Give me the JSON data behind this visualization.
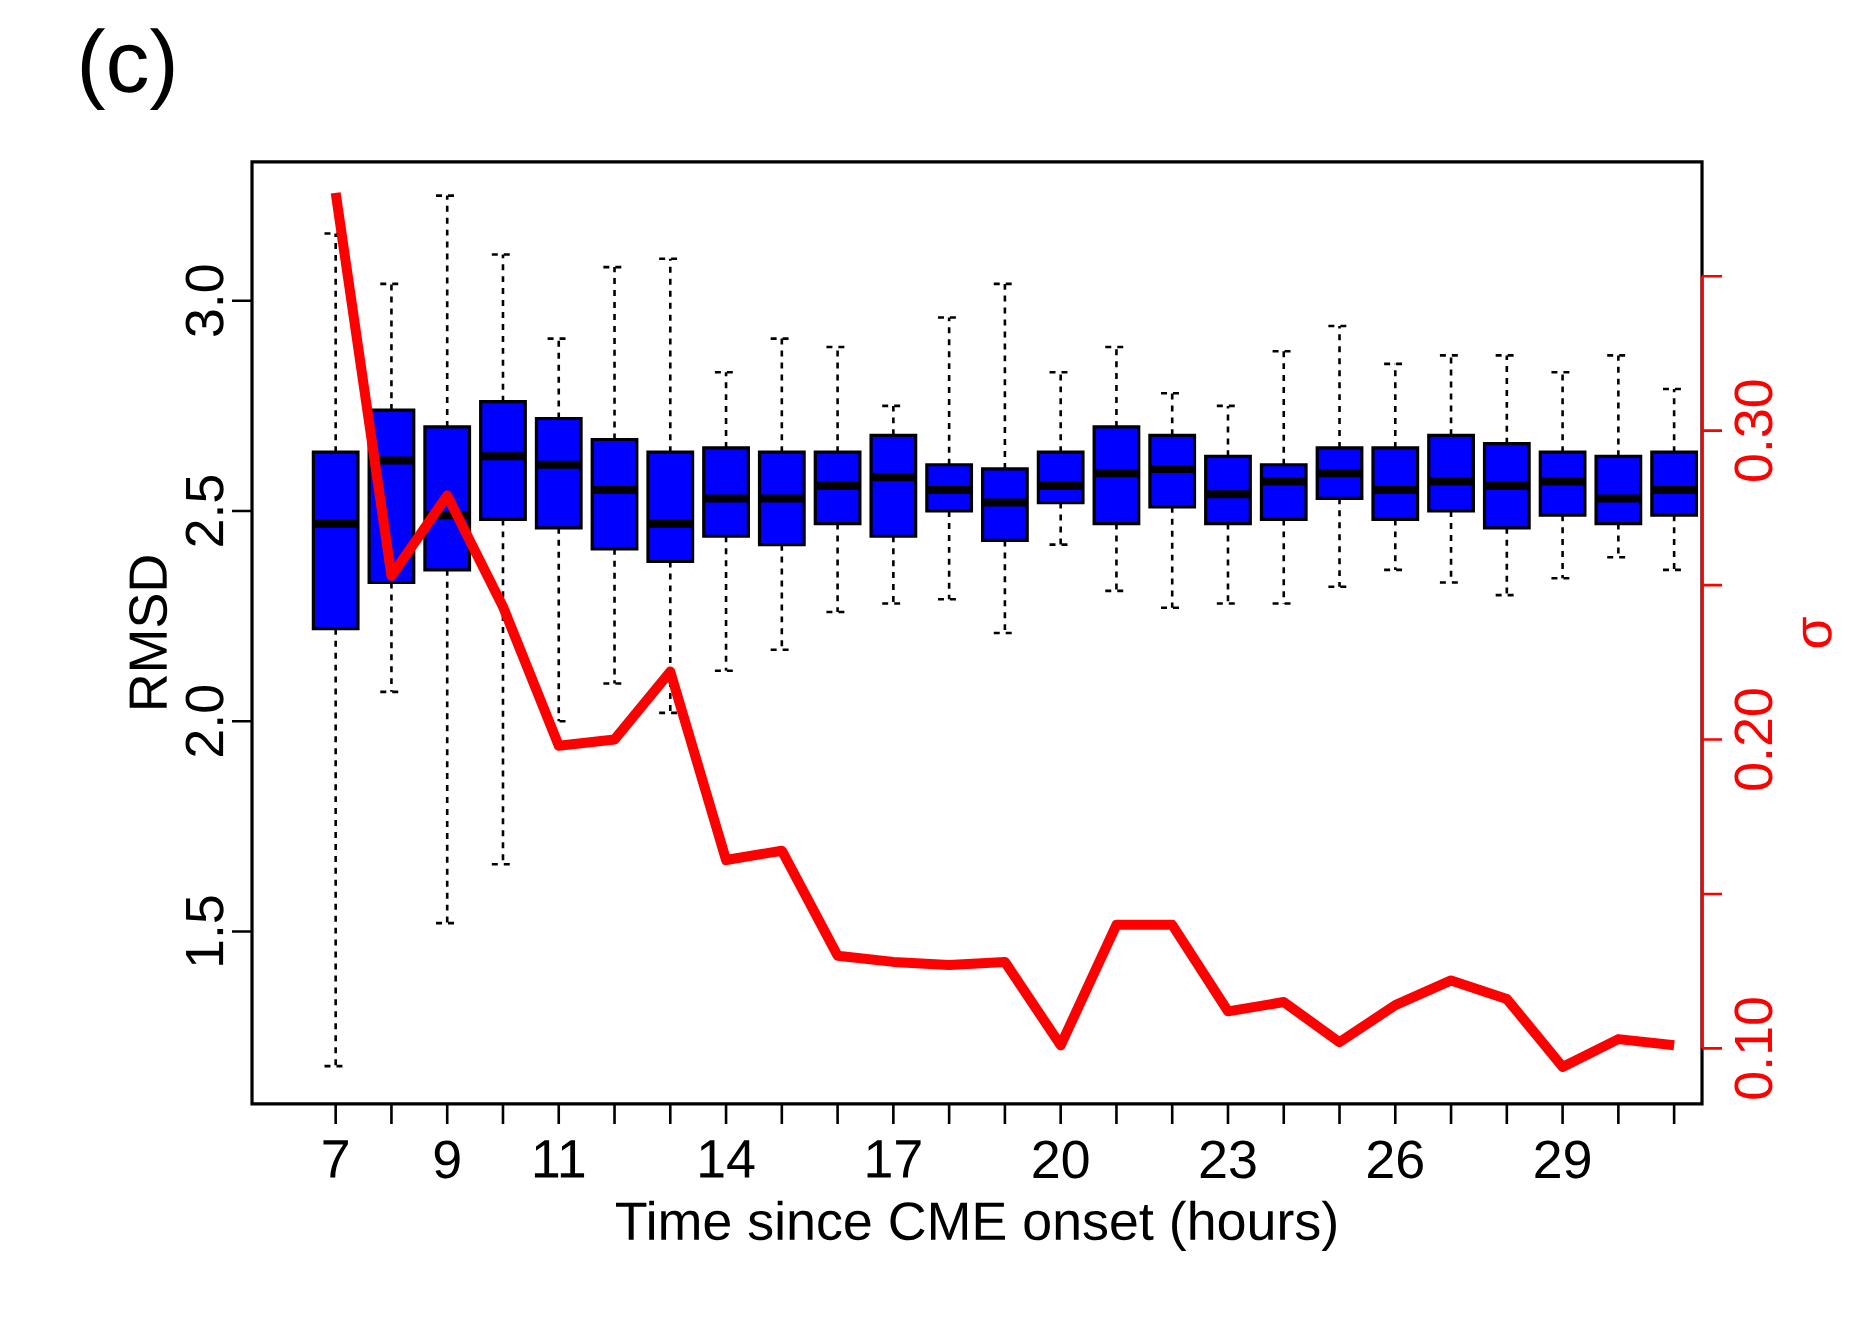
{
  "chart_data": {
    "type": "box",
    "title": "(c)",
    "xlabel": "Time since CME onset (hours)",
    "ylabel": "RMSD",
    "y2label": "σ",
    "categories": [
      "7",
      null,
      "9",
      null,
      "11",
      null,
      null,
      "14",
      null,
      null,
      "17",
      null,
      null,
      "20",
      null,
      null,
      "23",
      null,
      null,
      "26",
      null,
      null,
      "29",
      null,
      null
    ],
    "ylim": [
      1.09,
      3.33
    ],
    "yticks": [
      {
        "value": 1.5,
        "label": "1.5"
      },
      {
        "value": 2.0,
        "label": "2.0"
      },
      {
        "value": 2.5,
        "label": "2.5"
      },
      {
        "value": 3.0,
        "label": "3.0"
      }
    ],
    "y2lim": [
      0.082,
      0.387
    ],
    "y2ticks": [
      {
        "value": 0.1,
        "label": "0.10"
      },
      {
        "value": 0.15,
        "label": null
      },
      {
        "value": 0.2,
        "label": "0.20"
      },
      {
        "value": 0.25,
        "label": null
      },
      {
        "value": 0.3,
        "label": "0.30"
      },
      {
        "value": 0.35,
        "label": null
      }
    ],
    "series": [
      {
        "color": "#0000ff",
        "boxes": [
          {
            "low": 1.18,
            "q1": 2.22,
            "median": 2.47,
            "q3": 2.64,
            "high": 3.16
          },
          {
            "low": 2.07,
            "q1": 2.33,
            "median": 2.62,
            "q3": 2.74,
            "high": 3.04
          },
          {
            "low": 1.52,
            "q1": 2.36,
            "median": 2.49,
            "q3": 2.7,
            "high": 3.25
          },
          {
            "low": 1.66,
            "q1": 2.48,
            "median": 2.63,
            "q3": 2.76,
            "high": 3.11
          },
          {
            "low": 2.0,
            "q1": 2.46,
            "median": 2.61,
            "q3": 2.72,
            "high": 2.91
          },
          {
            "low": 2.09,
            "q1": 2.41,
            "median": 2.55,
            "q3": 2.67,
            "high": 3.08
          },
          {
            "low": 2.02,
            "q1": 2.38,
            "median": 2.47,
            "q3": 2.64,
            "high": 3.1
          },
          {
            "low": 2.12,
            "q1": 2.44,
            "median": 2.53,
            "q3": 2.65,
            "high": 2.83
          },
          {
            "low": 2.17,
            "q1": 2.42,
            "median": 2.53,
            "q3": 2.64,
            "high": 2.91
          },
          {
            "low": 2.26,
            "q1": 2.47,
            "median": 2.56,
            "q3": 2.64,
            "high": 2.89
          },
          {
            "low": 2.28,
            "q1": 2.44,
            "median": 2.58,
            "q3": 2.68,
            "high": 2.75
          },
          {
            "low": 2.29,
            "q1": 2.5,
            "median": 2.55,
            "q3": 2.61,
            "high": 2.96
          },
          {
            "low": 2.21,
            "q1": 2.43,
            "median": 2.52,
            "q3": 2.6,
            "high": 3.04
          },
          {
            "low": 2.42,
            "q1": 2.52,
            "median": 2.56,
            "q3": 2.64,
            "high": 2.83
          },
          {
            "low": 2.31,
            "q1": 2.47,
            "median": 2.59,
            "q3": 2.7,
            "high": 2.89
          },
          {
            "low": 2.27,
            "q1": 2.51,
            "median": 2.6,
            "q3": 2.68,
            "high": 2.78
          },
          {
            "low": 2.28,
            "q1": 2.47,
            "median": 2.54,
            "q3": 2.63,
            "high": 2.75
          },
          {
            "low": 2.28,
            "q1": 2.48,
            "median": 2.57,
            "q3": 2.61,
            "high": 2.88
          },
          {
            "low": 2.32,
            "q1": 2.53,
            "median": 2.59,
            "q3": 2.65,
            "high": 2.94
          },
          {
            "low": 2.36,
            "q1": 2.48,
            "median": 2.55,
            "q3": 2.65,
            "high": 2.85
          },
          {
            "low": 2.33,
            "q1": 2.5,
            "median": 2.57,
            "q3": 2.68,
            "high": 2.87
          },
          {
            "low": 2.3,
            "q1": 2.46,
            "median": 2.56,
            "q3": 2.66,
            "high": 2.87
          },
          {
            "low": 2.34,
            "q1": 2.49,
            "median": 2.57,
            "q3": 2.64,
            "high": 2.83
          },
          {
            "low": 2.39,
            "q1": 2.47,
            "median": 2.53,
            "q3": 2.63,
            "high": 2.87
          },
          {
            "low": 2.36,
            "q1": 2.49,
            "median": 2.55,
            "q3": 2.64,
            "high": 2.79
          }
        ]
      },
      {
        "type": "line",
        "axis": "y2",
        "color": "#ff0000",
        "values": [
          0.377,
          0.253,
          0.279,
          0.243,
          0.198,
          0.2,
          0.222,
          0.161,
          0.164,
          0.13,
          0.128,
          0.127,
          0.128,
          0.101,
          0.14,
          0.14,
          0.112,
          0.115,
          0.102,
          0.114,
          0.122,
          0.116,
          0.094,
          0.103,
          0.101
        ]
      }
    ]
  }
}
